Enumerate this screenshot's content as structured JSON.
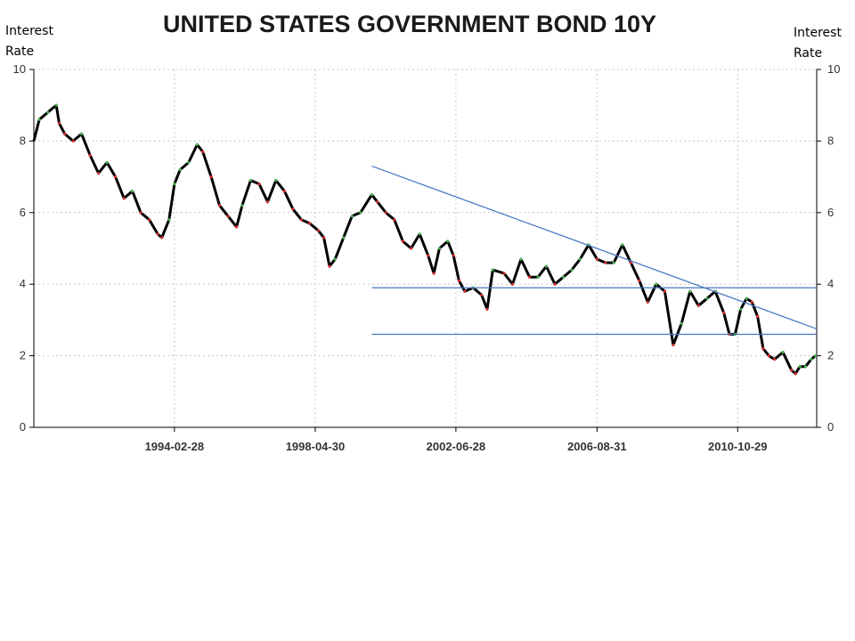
{
  "chart_data": {
    "type": "line",
    "title": "UNITED STATES GOVERNMENT BOND 10Y",
    "ylabel_left": [
      "Interest",
      "Rate"
    ],
    "ylabel_right": [
      "Interest",
      "Rate"
    ],
    "ylim": [
      0,
      10
    ],
    "y_ticks": [
      0,
      2,
      4,
      6,
      8,
      10
    ],
    "xlim": [
      "1990-01-01",
      "2013-03-01"
    ],
    "x_ticks": [
      "1994-02-28",
      "1998-04-30",
      "2002-06-28",
      "2006-08-31",
      "2010-10-29"
    ],
    "grid": true,
    "colors": {
      "price": "#000000",
      "up": "#4caf50",
      "down": "#d32f2f",
      "trend": "#4a78c2",
      "grid": "#c8c8c8"
    },
    "series": [
      {
        "x": [
          "1990-01-01",
          "1990-03-01",
          "1990-06-01",
          "1990-09-01",
          "1990-10-01",
          "1990-12-01",
          "1991-03-01",
          "1991-06-01",
          "1991-09-01",
          "1991-12-01",
          "1992-03-01",
          "1992-06-01",
          "1992-09-01",
          "1992-12-01",
          "1993-03-01",
          "1993-06-01",
          "1993-09-01",
          "1993-10-15",
          "1994-01-01",
          "1994-03-01",
          "1994-05-01",
          "1994-08-01",
          "1994-11-01",
          "1995-01-01",
          "1995-04-01",
          "1995-07-01",
          "1995-10-01",
          "1996-01-01",
          "1996-03-01",
          "1996-06-01",
          "1996-09-01",
          "1996-12-01",
          "1997-03-01",
          "1997-06-01",
          "1997-09-01",
          "1997-12-01",
          "1998-03-01",
          "1998-06-01",
          "1998-08-01",
          "1998-10-01",
          "1998-12-01",
          "1999-03-01",
          "1999-06-01",
          "1999-09-01",
          "2000-01-01",
          "2000-03-01",
          "2000-06-01",
          "2000-09-01",
          "2000-12-01",
          "2001-03-01",
          "2001-06-01",
          "2001-09-01",
          "2001-11-01",
          "2002-01-01",
          "2002-04-01",
          "2002-06-01",
          "2002-08-01",
          "2002-10-01",
          "2003-01-01",
          "2003-04-01",
          "2003-06-01",
          "2003-08-01",
          "2003-12-01",
          "2004-03-01",
          "2004-06-01",
          "2004-09-01",
          "2004-12-01",
          "2005-03-01",
          "2005-06-01",
          "2005-09-01",
          "2005-12-01",
          "2006-03-01",
          "2006-06-01",
          "2006-09-01",
          "2006-12-01",
          "2007-03-01",
          "2007-06-01",
          "2007-09-01",
          "2007-12-01",
          "2008-03-01",
          "2008-06-01",
          "2008-09-01",
          "2008-12-01",
          "2009-03-01",
          "2009-06-01",
          "2009-09-01",
          "2009-12-01",
          "2010-03-01",
          "2010-06-01",
          "2010-08-01",
          "2010-10-01",
          "2010-12-01",
          "2011-02-01",
          "2011-04-01",
          "2011-06-01",
          "2011-08-01",
          "2011-10-01",
          "2011-12-01",
          "2012-03-01",
          "2012-06-01",
          "2012-07-15",
          "2012-09-01",
          "2012-11-01",
          "2013-01-01",
          "2013-02-15"
        ],
        "values": [
          8.0,
          8.6,
          8.8,
          9.0,
          8.5,
          8.2,
          8.0,
          8.2,
          7.6,
          7.1,
          7.4,
          7.0,
          6.4,
          6.6,
          6.0,
          5.8,
          5.4,
          5.3,
          5.8,
          6.8,
          7.2,
          7.4,
          7.9,
          7.7,
          7.0,
          6.2,
          5.9,
          5.6,
          6.2,
          6.9,
          6.8,
          6.3,
          6.9,
          6.6,
          6.1,
          5.8,
          5.7,
          5.5,
          5.3,
          4.5,
          4.7,
          5.3,
          5.9,
          6.0,
          6.5,
          6.3,
          6.0,
          5.8,
          5.2,
          5.0,
          5.4,
          4.8,
          4.3,
          5.0,
          5.2,
          4.8,
          4.1,
          3.8,
          3.9,
          3.7,
          3.3,
          4.4,
          4.3,
          4.0,
          4.7,
          4.2,
          4.2,
          4.5,
          4.0,
          4.2,
          4.4,
          4.7,
          5.1,
          4.7,
          4.6,
          4.6,
          5.1,
          4.6,
          4.1,
          3.5,
          4.0,
          3.8,
          2.3,
          2.9,
          3.8,
          3.4,
          3.6,
          3.8,
          3.2,
          2.6,
          2.6,
          3.3,
          3.6,
          3.5,
          3.1,
          2.2,
          2.0,
          1.9,
          2.1,
          1.6,
          1.5,
          1.7,
          1.7,
          1.9,
          2.0
        ]
      }
    ],
    "annotations": [
      {
        "kind": "trendline",
        "from": [
          "2000-01-01",
          7.3
        ],
        "to": [
          "2013-03-01",
          2.75
        ]
      },
      {
        "kind": "hline",
        "from": [
          "2000-01-01",
          3.9
        ],
        "to": [
          "2013-03-01",
          3.9
        ]
      },
      {
        "kind": "hline",
        "from": [
          "2000-01-01",
          2.6
        ],
        "to": [
          "2013-03-01",
          2.6
        ]
      }
    ]
  }
}
